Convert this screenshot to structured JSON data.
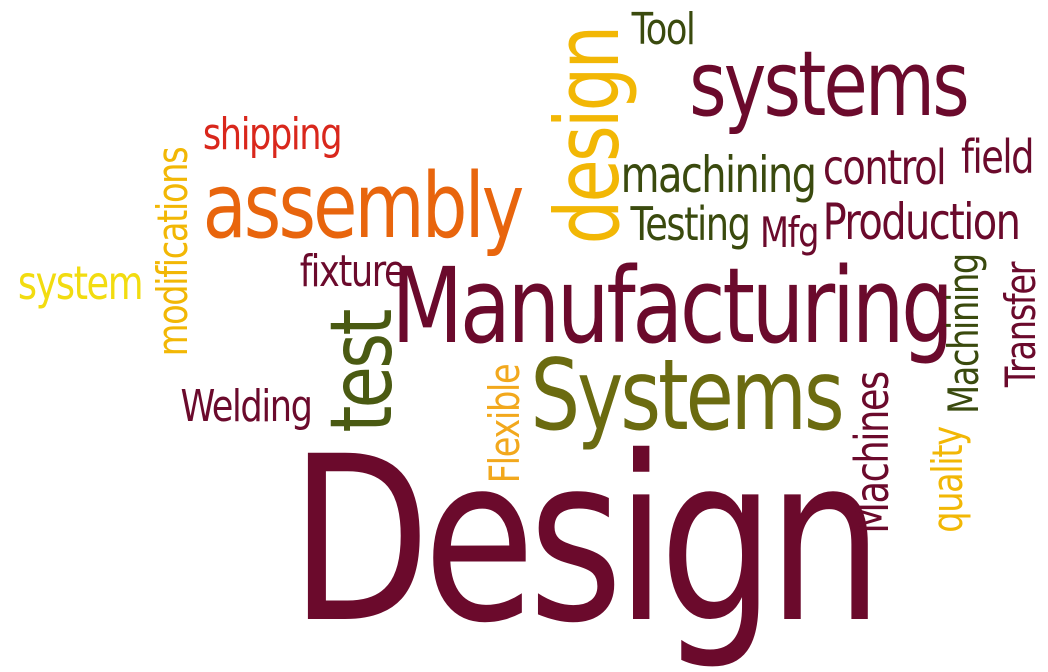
{
  "words": {
    "design_big": {
      "text": "Design",
      "color": "#6b0a2c"
    },
    "manufacturing": {
      "text": "Manufacturing",
      "color": "#6b0a2c"
    },
    "systems_cap": {
      "text": "Systems",
      "color": "#6b6b10"
    },
    "assembly": {
      "text": "assembly",
      "color": "#e8650d"
    },
    "systems": {
      "text": "systems",
      "color": "#6b0a2c"
    },
    "design_v": {
      "text": "design",
      "color": "#f2b705"
    },
    "test": {
      "text": "test",
      "color": "#4a5a12"
    },
    "tool": {
      "text": "Tool",
      "color": "#3a4a0e"
    },
    "shipping": {
      "text": "shipping",
      "color": "#d9271c"
    },
    "modifications": {
      "text": "modifications",
      "color": "#f2b705"
    },
    "system": {
      "text": "system",
      "color": "#f2dc10"
    },
    "fixture": {
      "text": "fixture",
      "color": "#6b0a2c"
    },
    "welding": {
      "text": "Welding",
      "color": "#6b0a2c"
    },
    "flexible": {
      "text": "Flexible",
      "color": "#f2a81d"
    },
    "machining": {
      "text": "machining",
      "color": "#3a4a0e"
    },
    "control": {
      "text": "control",
      "color": "#6b0a2c"
    },
    "field": {
      "text": "field",
      "color": "#6b0a2c"
    },
    "testing": {
      "text": "Testing",
      "color": "#3a4a0e"
    },
    "mfg": {
      "text": "Mfg",
      "color": "#6b0a2c"
    },
    "production": {
      "text": "Production",
      "color": "#6b0a2c"
    },
    "machining_cap": {
      "text": "Machining",
      "color": "#3a4a0e"
    },
    "transfer": {
      "text": "Transfer",
      "color": "#6b0a2c"
    },
    "machines": {
      "text": "Machines",
      "color": "#6b0a2c"
    },
    "quality": {
      "text": "quality",
      "color": "#f2b705"
    }
  }
}
